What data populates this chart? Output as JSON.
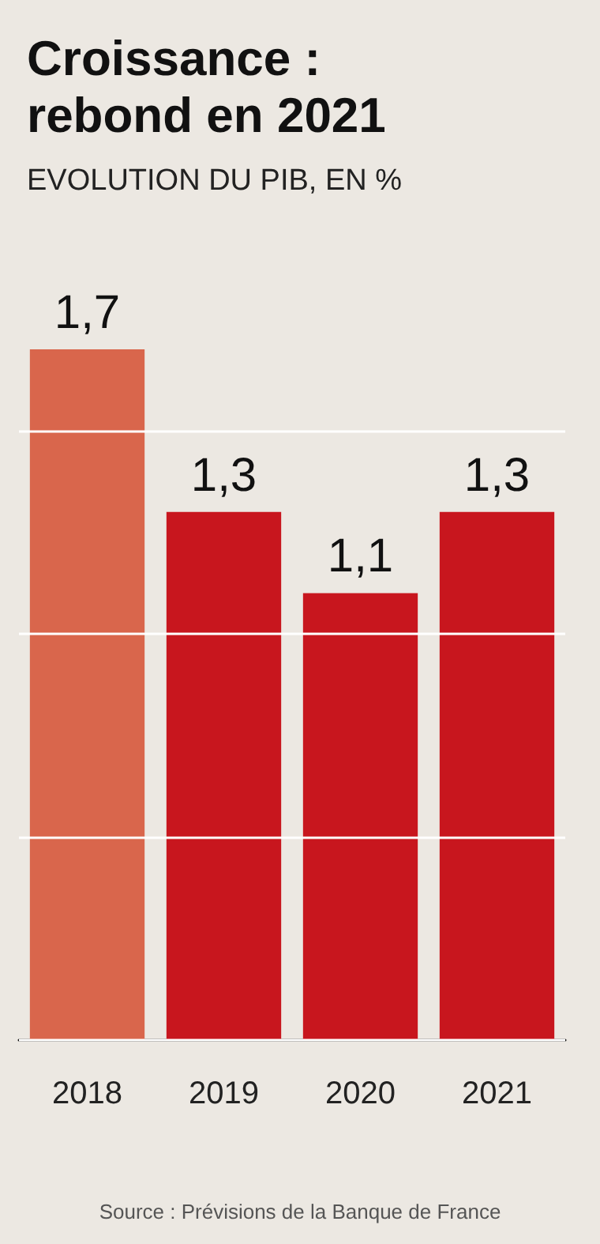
{
  "chart_data": {
    "type": "bar",
    "title": "Croissance :\nrebond en 2021",
    "subtitle": "EVOLUTION DU PIB, EN %",
    "categories": [
      "2018",
      "2019",
      "2020",
      "2021"
    ],
    "values": [
      1.7,
      1.3,
      1.1,
      1.3
    ],
    "value_labels": [
      "1,7",
      "1,3",
      "1,1",
      "1,3"
    ],
    "colors": [
      "#d9664c",
      "#c8161e",
      "#c8161e",
      "#c8161e"
    ],
    "ylim": [
      0,
      1.7
    ],
    "yticks": [
      {
        "value": 0,
        "label": null
      },
      {
        "value": 0.5,
        "label": null
      },
      {
        "value": 1,
        "label": null
      },
      {
        "value": 1.5,
        "label": null
      }
    ],
    "grid": "y",
    "tick_labels": "x",
    "annotations": [
      "Source : Prévisions de la Banque de France"
    ]
  }
}
